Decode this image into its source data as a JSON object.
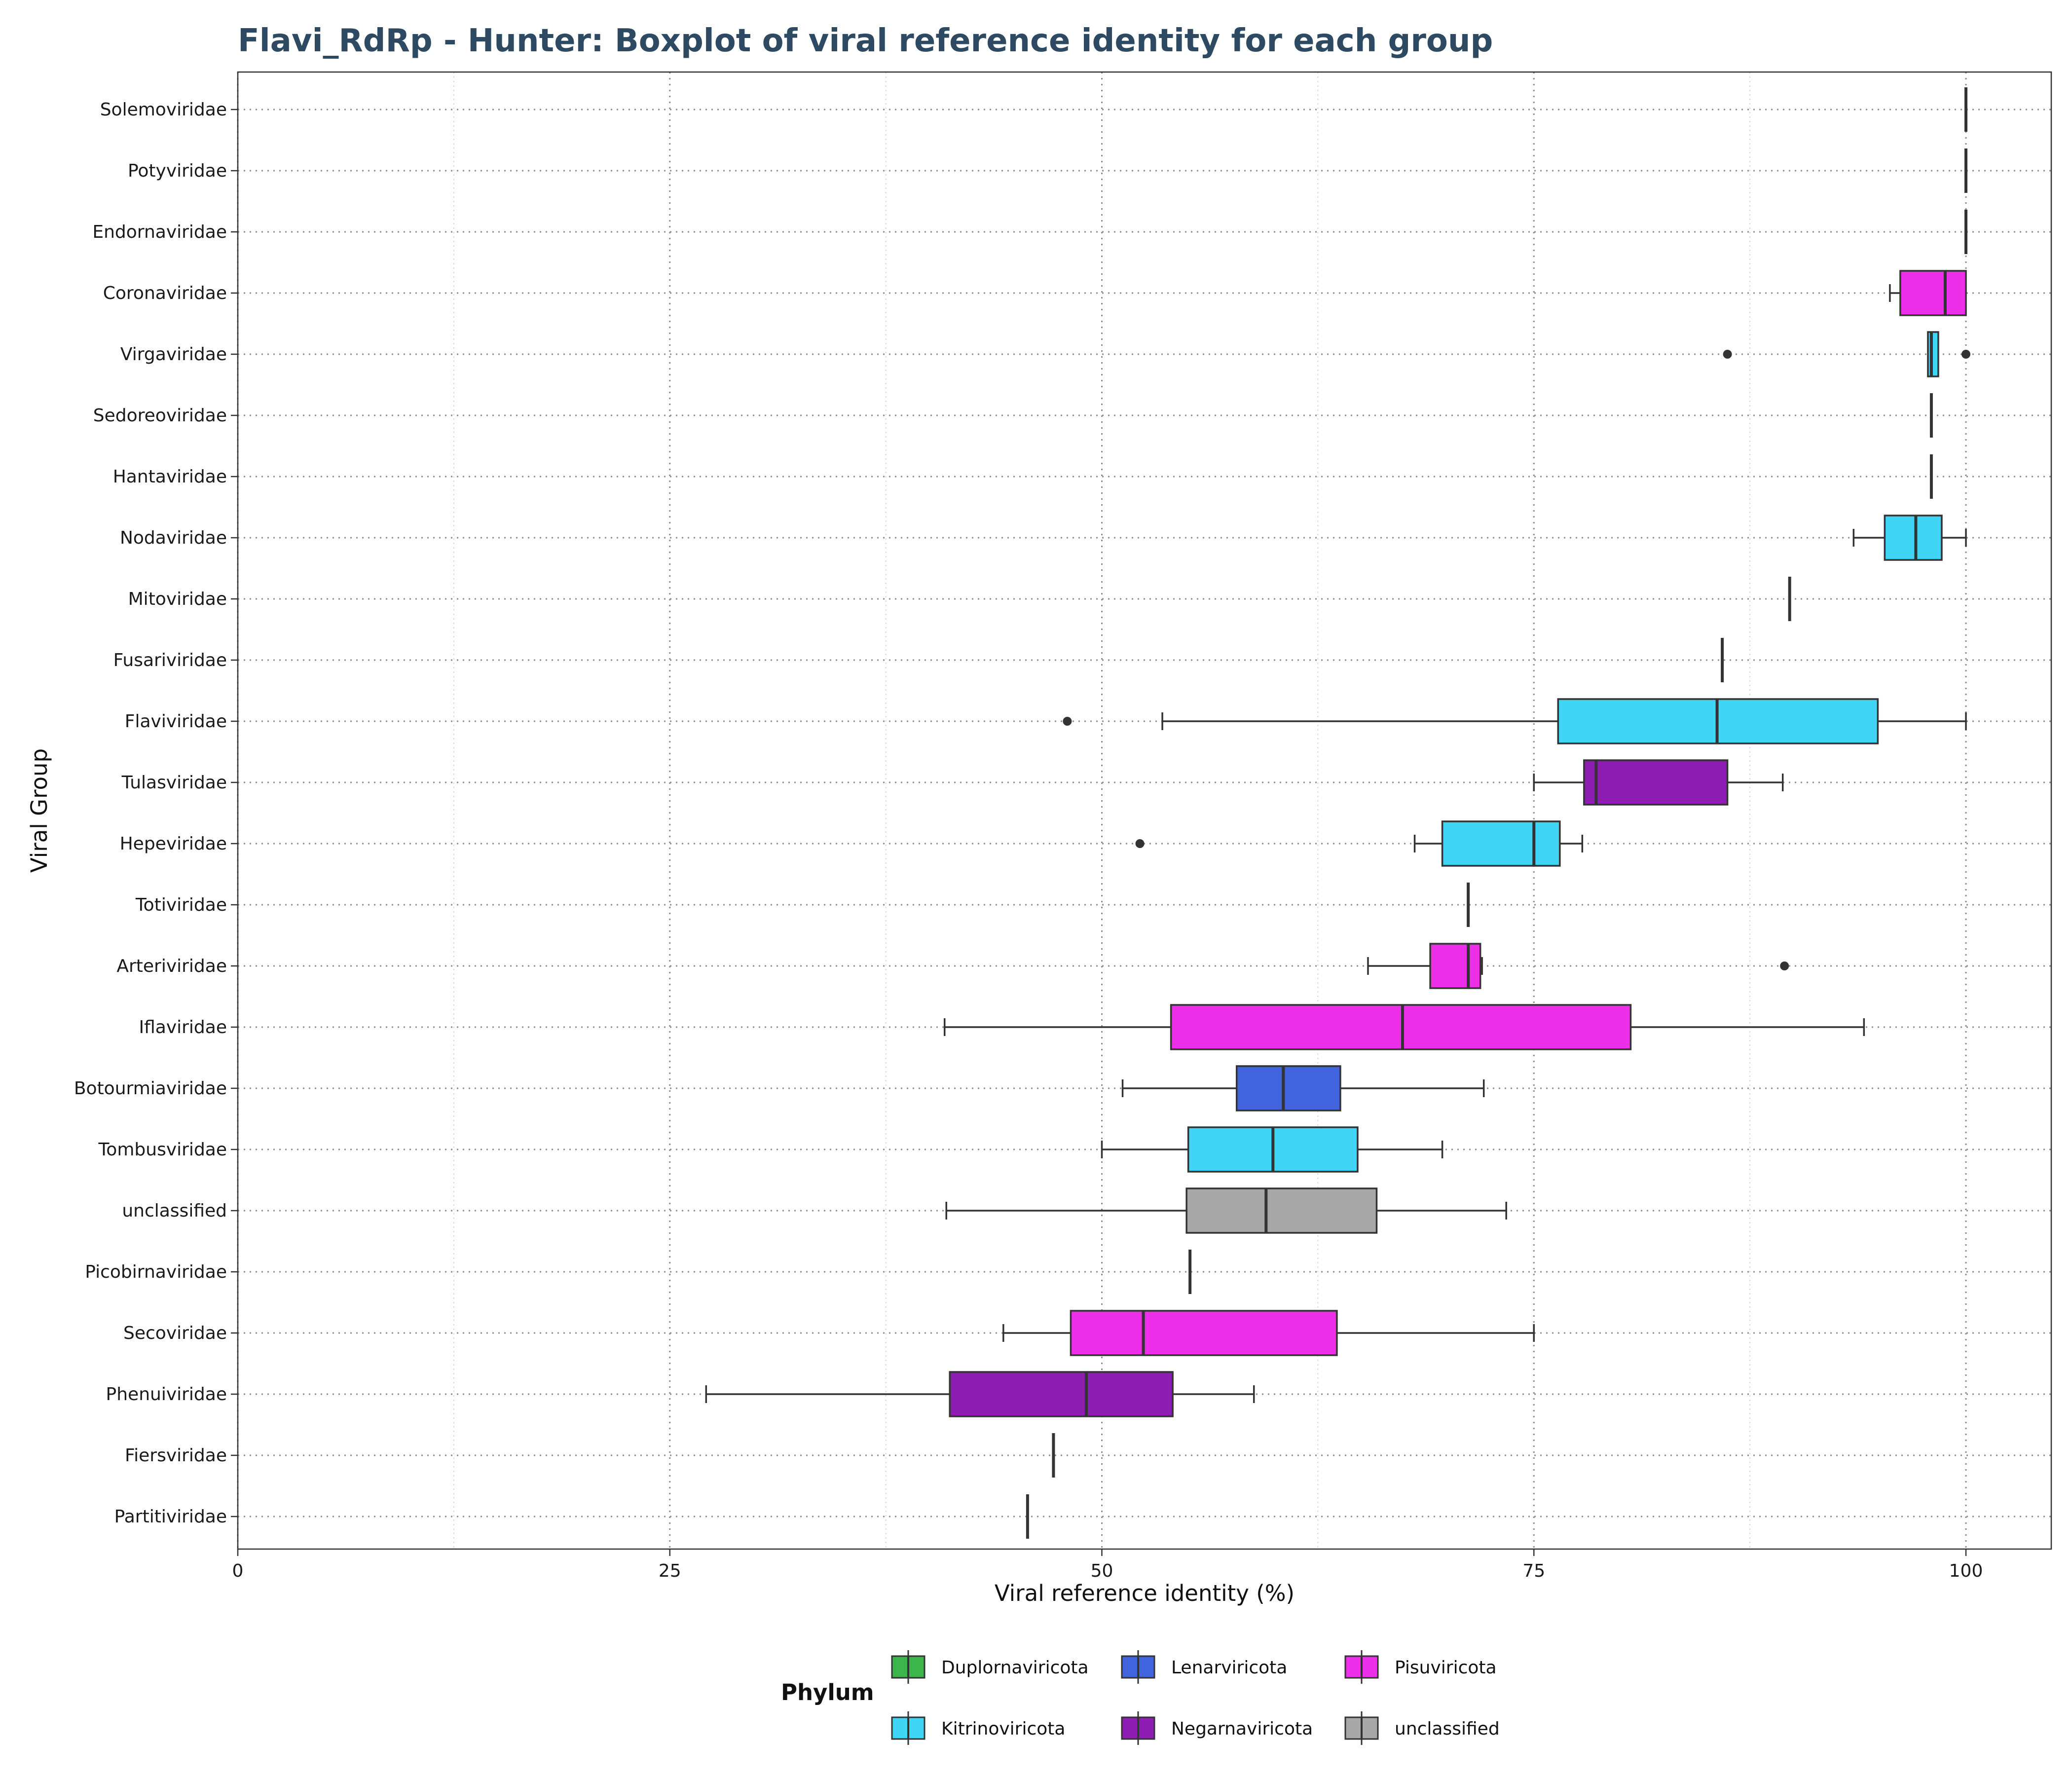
{
  "chart_data": {
    "type": "boxplot",
    "title": "Flavi_RdRp - Hunter: Boxplot of viral reference identity for each group",
    "xlabel": "Viral reference identity (%)",
    "ylabel": "Viral Group",
    "xlim": [
      0,
      105
    ],
    "xticks": [
      "0",
      "25",
      "50",
      "75",
      "100"
    ],
    "grid": true,
    "legend": {
      "title": "Phylum",
      "position": "bottom",
      "entries": [
        {
          "name": "Duplornaviricota",
          "color": "#3CB54A"
        },
        {
          "name": "Lenarviricota",
          "color": "#4163DD"
        },
        {
          "name": "Pisuviricota",
          "color": "#EE2FE9"
        },
        {
          "name": "Kitrinoviricota",
          "color": "#40D5F5"
        },
        {
          "name": "Negarnaviricota",
          "color": "#8E1DB4"
        },
        {
          "name": "unclassified",
          "color": "#A8A8A8"
        }
      ]
    },
    "groups": [
      {
        "name": "Solemoviridae",
        "phylum": "Pisuviricota",
        "min": 100,
        "q1": 100,
        "median": 100,
        "q3": 100,
        "max": 100,
        "outliers": []
      },
      {
        "name": "Potyviridae",
        "phylum": "Pisuviricota",
        "min": 100,
        "q1": 100,
        "median": 100,
        "q3": 100,
        "max": 100,
        "outliers": []
      },
      {
        "name": "Endornaviridae",
        "phylum": "Kitrinoviricota",
        "min": 100,
        "q1": 100,
        "median": 100,
        "q3": 100,
        "max": 100,
        "outliers": []
      },
      {
        "name": "Coronaviridae",
        "phylum": "Pisuviricota",
        "min": 95.6,
        "q1": 96.2,
        "median": 98.8,
        "q3": 100,
        "max": 100,
        "outliers": []
      },
      {
        "name": "Virgaviridae",
        "phylum": "Kitrinoviricota",
        "min": 97.8,
        "q1": 97.8,
        "median": 98,
        "q3": 98.4,
        "max": 98.4,
        "outliers": [
          86.2,
          100
        ]
      },
      {
        "name": "Sedoreoviridae",
        "phylum": "Duplornaviricota",
        "min": 98,
        "q1": 98,
        "median": 98,
        "q3": 98,
        "max": 98,
        "outliers": []
      },
      {
        "name": "Hantaviridae",
        "phylum": "Negarnaviricota",
        "min": 98,
        "q1": 98,
        "median": 98,
        "q3": 98,
        "max": 98,
        "outliers": []
      },
      {
        "name": "Nodaviridae",
        "phylum": "Kitrinoviricota",
        "min": 93.5,
        "q1": 95.3,
        "median": 97.1,
        "q3": 98.6,
        "max": 100,
        "outliers": []
      },
      {
        "name": "Mitoviridae",
        "phylum": "Lenarviricota",
        "min": 89.8,
        "q1": 89.8,
        "median": 89.8,
        "q3": 89.8,
        "max": 89.8,
        "outliers": []
      },
      {
        "name": "Fusariviridae",
        "phylum": "unclassified",
        "min": 85.9,
        "q1": 85.9,
        "median": 85.9,
        "q3": 85.9,
        "max": 85.9,
        "outliers": []
      },
      {
        "name": "Flaviviridae",
        "phylum": "Kitrinoviricota",
        "min": 53.5,
        "q1": 76.4,
        "median": 85.6,
        "q3": 94.9,
        "max": 100,
        "outliers": [
          48
        ]
      },
      {
        "name": "Tulasviridae",
        "phylum": "Negarnaviricota",
        "min": 75,
        "q1": 77.9,
        "median": 78.6,
        "q3": 86.2,
        "max": 89.4,
        "outliers": []
      },
      {
        "name": "Hepeviridae",
        "phylum": "Kitrinoviricota",
        "min": 68.1,
        "q1": 69.7,
        "median": 75,
        "q3": 76.5,
        "max": 77.8,
        "outliers": [
          52.2
        ]
      },
      {
        "name": "Totiviridae",
        "phylum": "Duplornaviricota",
        "min": 71.2,
        "q1": 71.2,
        "median": 71.2,
        "q3": 71.2,
        "max": 71.2,
        "outliers": []
      },
      {
        "name": "Arteriviridae",
        "phylum": "Pisuviricota",
        "min": 65.4,
        "q1": 69,
        "median": 71.2,
        "q3": 71.9,
        "max": 72,
        "outliers": [
          89.5
        ]
      },
      {
        "name": "Iflaviridae",
        "phylum": "Pisuviricota",
        "min": 40.9,
        "q1": 54,
        "median": 67.4,
        "q3": 80.6,
        "max": 94.1,
        "outliers": []
      },
      {
        "name": "Botourmiaviridae",
        "phylum": "Lenarviricota",
        "min": 51.2,
        "q1": 57.8,
        "median": 60.5,
        "q3": 63.8,
        "max": 72.1,
        "outliers": []
      },
      {
        "name": "Tombusviridae",
        "phylum": "Kitrinoviricota",
        "min": 50,
        "q1": 55,
        "median": 59.9,
        "q3": 64.8,
        "max": 69.7,
        "outliers": []
      },
      {
        "name": "unclassified",
        "phylum": "unclassified",
        "min": 41,
        "q1": 54.9,
        "median": 59.5,
        "q3": 65.9,
        "max": 73.4,
        "outliers": []
      },
      {
        "name": "Picobirnaviridae",
        "phylum": "Pisuviricota",
        "min": 55.1,
        "q1": 55.1,
        "median": 55.1,
        "q3": 55.1,
        "max": 55.1,
        "outliers": []
      },
      {
        "name": "Secoviridae",
        "phylum": "Pisuviricota",
        "min": 44.3,
        "q1": 48.2,
        "median": 52.4,
        "q3": 63.6,
        "max": 75,
        "outliers": []
      },
      {
        "name": "Phenuiviridae",
        "phylum": "Negarnaviricota",
        "min": 27.1,
        "q1": 41.2,
        "median": 49.1,
        "q3": 54.1,
        "max": 58.8,
        "outliers": []
      },
      {
        "name": "Fiersviridae",
        "phylum": "Lenarviricota",
        "min": 47.2,
        "q1": 47.2,
        "median": 47.2,
        "q3": 47.2,
        "max": 47.2,
        "outliers": []
      },
      {
        "name": "Partitiviridae",
        "phylum": "Duplornaviricota",
        "min": 45.7,
        "q1": 45.7,
        "median": 45.7,
        "q3": 45.7,
        "max": 45.7,
        "outliers": []
      }
    ]
  }
}
